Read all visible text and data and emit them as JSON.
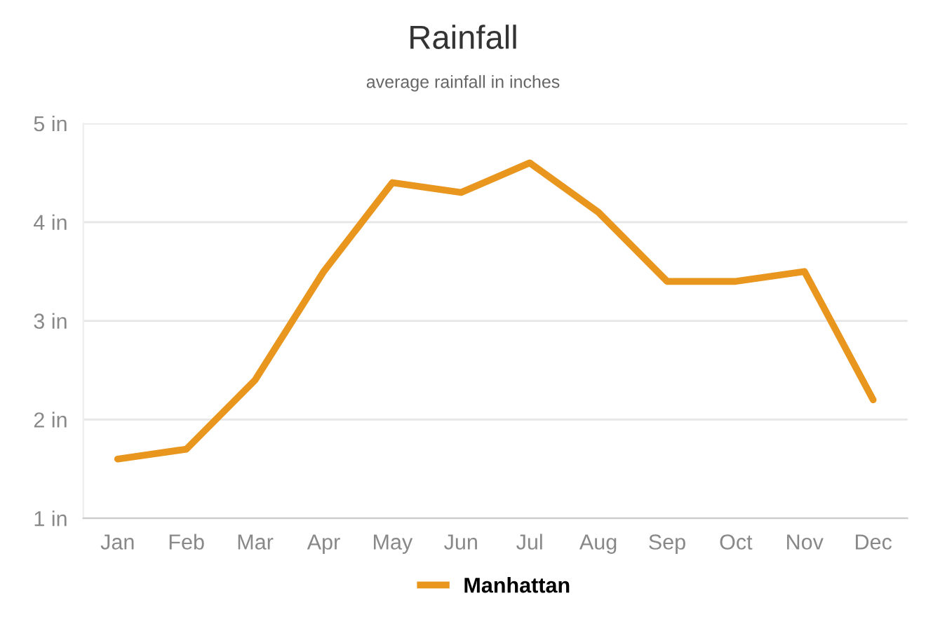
{
  "chart_data": {
    "type": "line",
    "title": "Rainfall",
    "subtitle": "average rainfall in inches",
    "categories": [
      "Jan",
      "Feb",
      "Mar",
      "Apr",
      "May",
      "Jun",
      "Jul",
      "Aug",
      "Sep",
      "Oct",
      "Nov",
      "Dec"
    ],
    "series": [
      {
        "name": "Manhattan",
        "color": "#e8961e",
        "values": [
          1.6,
          1.7,
          2.4,
          3.5,
          4.4,
          4.3,
          4.6,
          4.1,
          3.4,
          3.4,
          3.5,
          2.2
        ]
      }
    ],
    "ylim": [
      1,
      5
    ],
    "yticks": [
      {
        "value": 1,
        "label": "1 in"
      },
      {
        "value": 2,
        "label": "2 in"
      },
      {
        "value": 3,
        "label": "3 in"
      },
      {
        "value": 4,
        "label": "4 in"
      },
      {
        "value": 5,
        "label": "5 in"
      }
    ],
    "grid": "y",
    "legend": "bottom",
    "marker": "none",
    "line_style": "solid"
  }
}
